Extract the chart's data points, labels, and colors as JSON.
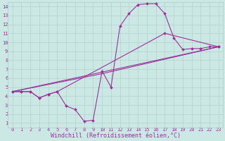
{
  "xlabel": "Windchill (Refroidissement éolien,°C)",
  "xlim": [
    -0.5,
    23.5
  ],
  "ylim": [
    0.5,
    14.5
  ],
  "xticks": [
    0,
    1,
    2,
    3,
    4,
    5,
    6,
    7,
    8,
    9,
    10,
    11,
    12,
    13,
    14,
    15,
    16,
    17,
    18,
    19,
    20,
    21,
    22,
    23
  ],
  "yticks": [
    1,
    2,
    3,
    4,
    5,
    6,
    7,
    8,
    9,
    10,
    11,
    12,
    13,
    14
  ],
  "background_color": "#cce8e4",
  "grid_color": "#aaccc8",
  "line_color": "#993399",
  "markersize": 2.0,
  "linewidth": 0.8,
  "line1_x": [
    0,
    1,
    2,
    3,
    4,
    5,
    6,
    7,
    8,
    9,
    10,
    11,
    12,
    13,
    14,
    15,
    16,
    17,
    18,
    19,
    20,
    21,
    22,
    23
  ],
  "line1_y": [
    4.5,
    4.5,
    4.5,
    3.8,
    4.2,
    4.5,
    2.9,
    2.5,
    1.2,
    1.3,
    6.8,
    5.0,
    11.8,
    13.2,
    14.2,
    14.3,
    14.3,
    13.2,
    10.5,
    9.2,
    9.3,
    9.3,
    9.5,
    9.5
  ],
  "line2_x": [
    0,
    1,
    2,
    3,
    4,
    5,
    17,
    23
  ],
  "line2_y": [
    4.5,
    4.5,
    4.5,
    3.8,
    4.2,
    4.5,
    11.0,
    9.5
  ],
  "line3_x": [
    0,
    23
  ],
  "line3_y": [
    4.5,
    9.5
  ],
  "line4_x": [
    0,
    10,
    23
  ],
  "line4_y": [
    4.5,
    6.5,
    9.5
  ],
  "font_family": "monospace",
  "tick_fontsize": 5,
  "label_fontsize": 6
}
